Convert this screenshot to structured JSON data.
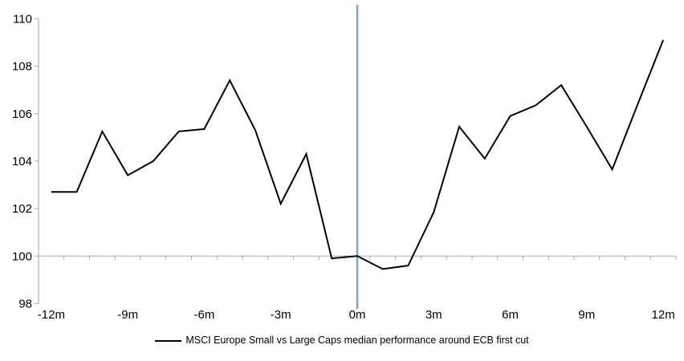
{
  "chart_data": {
    "type": "line",
    "title": "",
    "xlabel": "",
    "ylabel": "",
    "x": [
      -12,
      -11,
      -10,
      -9,
      -8,
      -7,
      -6,
      -5,
      -4,
      -3,
      -2,
      -1,
      0,
      1,
      2,
      3,
      4,
      5,
      6,
      7,
      8,
      9,
      10,
      11,
      12
    ],
    "series": [
      {
        "name": "MSCI Europe Small vs Large Caps median performance around ECB first cut",
        "color": "#000000",
        "values": [
          102.7,
          102.7,
          105.25,
          103.4,
          104.0,
          105.25,
          105.35,
          107.4,
          105.3,
          102.2,
          104.3,
          99.9,
          100.0,
          99.45,
          99.6,
          101.85,
          105.45,
          104.1,
          105.9,
          106.35,
          107.2,
          105.45,
          103.65,
          106.4,
          109.1
        ]
      }
    ],
    "xlim": [
      -12,
      12
    ],
    "ylim": [
      98,
      110
    ],
    "y_ticks": [
      98,
      100,
      102,
      104,
      106,
      108,
      110
    ],
    "x_ticks": [
      {
        "label": "-12m",
        "value": -12
      },
      {
        "label": "-9m",
        "value": -9
      },
      {
        "label": "-6m",
        "value": -6
      },
      {
        "label": "-3m",
        "value": -3
      },
      {
        "label": "0m",
        "value": 0
      },
      {
        "label": "3m",
        "value": 3
      },
      {
        "label": "6m",
        "value": 6
      },
      {
        "label": "9m",
        "value": 9
      },
      {
        "label": "12m",
        "value": 12
      }
    ],
    "axis_cross_y": 100,
    "grid": "off",
    "event_line": {
      "x": 0,
      "color": "#7CA5CC"
    },
    "axis_color": "#A6A6A6",
    "legend": {
      "position": "bottom",
      "entries": [
        {
          "label": "MSCI Europe Small vs Large Caps median performance around ECB first cut",
          "color": "#000000"
        }
      ]
    }
  }
}
